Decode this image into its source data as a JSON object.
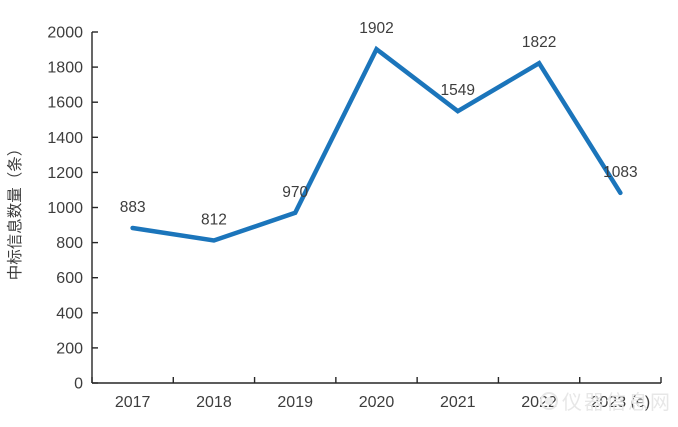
{
  "chart_data": {
    "type": "line",
    "categories": [
      "2017",
      "2018",
      "2019",
      "2020",
      "2021",
      "2022",
      "2023 (e)"
    ],
    "values": [
      883,
      812,
      970,
      1902,
      1549,
      1822,
      1083
    ],
    "title": "",
    "xlabel": "",
    "ylabel": "中标信息数量（条）",
    "ylim": [
      0,
      2000
    ],
    "ytick_step": 200,
    "grid": false,
    "legend_position": "none",
    "line_color": "#1b75bb",
    "label_color": "#3d3d3d",
    "axis_color": "#262626"
  },
  "watermark": {
    "text": "仪器信息网"
  }
}
